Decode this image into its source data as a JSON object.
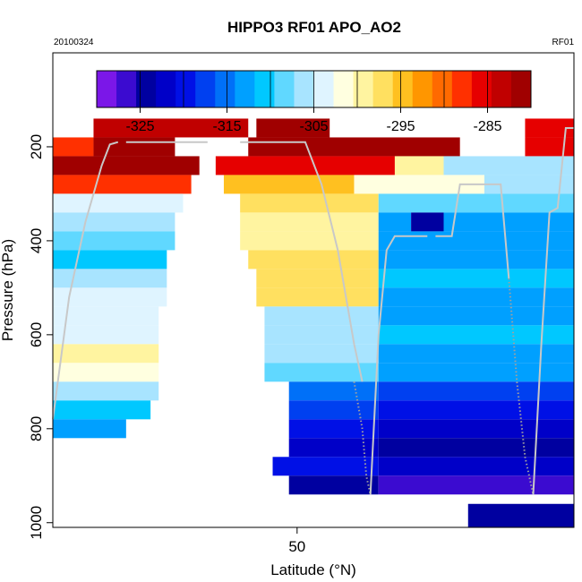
{
  "header": {
    "title": "HIPPO3 RF01 APO_AO2",
    "date": "20100324",
    "flight": "RF01"
  },
  "colors": {
    "scale": [
      "#7b17e8",
      "#3b0bd0",
      "#0000a0",
      "#0000c8",
      "#0010e6",
      "#0040f0",
      "#0070f8",
      "#00a0ff",
      "#00c8ff",
      "#60d8ff",
      "#a8e4ff",
      "#dff4ff",
      "#ffffe0",
      "#fff4a0",
      "#ffe060",
      "#ffc020",
      "#ff9600",
      "#ff6a00",
      "#ff3000",
      "#e60000",
      "#c00000",
      "#a00000"
    ],
    "track": "#c8c8c8",
    "track_dots": "#a0a0a0"
  },
  "chart_data": {
    "type": "heatmap",
    "title": "HIPPO3 RF01 APO_AO2",
    "xlabel": "Latitude (°N)",
    "ylabel": "Pressure (hPa)",
    "xlim": [
      20,
      84
    ],
    "ylim": [
      1010,
      0
    ],
    "x_ticks": [
      50
    ],
    "y_ticks": [
      200,
      400,
      600,
      800,
      1000
    ],
    "colorbar": {
      "range": [
        -330,
        -280
      ],
      "ticks": [
        -325,
        -315,
        -305,
        -295,
        -285
      ],
      "tick_labels": [
        "-325",
        "-315",
        "-305",
        "-295",
        "-285"
      ]
    },
    "rows": [
      {
        "p1": 140,
        "p2": 180,
        "segments": [
          {
            "x1": 25,
            "x2": 44,
            "v": -283
          },
          {
            "x1": 45,
            "x2": 54,
            "v": -281
          },
          {
            "x1": 78,
            "x2": 84,
            "v": -285
          }
        ]
      },
      {
        "p1": 180,
        "p2": 220,
        "segments": [
          {
            "x1": 20,
            "x2": 25,
            "v": -287
          },
          {
            "x1": 25,
            "x2": 35,
            "v": -282
          },
          {
            "x1": 44,
            "x2": 70,
            "v": -282
          },
          {
            "x1": 78,
            "x2": 84,
            "v": -286
          }
        ]
      },
      {
        "p1": 220,
        "p2": 260,
        "segments": [
          {
            "x1": 20,
            "x2": 38,
            "v": -280
          },
          {
            "x1": 40,
            "x2": 62,
            "v": -286
          },
          {
            "x1": 62,
            "x2": 68,
            "v": -300
          },
          {
            "x1": 68,
            "x2": 84,
            "v": -307
          }
        ]
      },
      {
        "p1": 260,
        "p2": 300,
        "segments": [
          {
            "x1": 20,
            "x2": 37,
            "v": -288
          },
          {
            "x1": 41,
            "x2": 57,
            "v": -295
          },
          {
            "x1": 57,
            "x2": 73,
            "v": -302
          },
          {
            "x1": 73,
            "x2": 84,
            "v": -307
          }
        ]
      },
      {
        "p1": 300,
        "p2": 340,
        "segments": [
          {
            "x1": 20,
            "x2": 36,
            "v": -303
          },
          {
            "x1": 43,
            "x2": 60,
            "v": -298
          },
          {
            "x1": 60,
            "x2": 84,
            "v": -309
          }
        ]
      },
      {
        "p1": 340,
        "p2": 380,
        "segments": [
          {
            "x1": 20,
            "x2": 35,
            "v": -307
          },
          {
            "x1": 43,
            "x2": 60,
            "v": -300
          },
          {
            "x1": 60,
            "x2": 64,
            "v": -312
          },
          {
            "x1": 64,
            "x2": 68,
            "v": -325
          },
          {
            "x1": 68,
            "x2": 84,
            "v": -314
          }
        ]
      },
      {
        "p1": 380,
        "p2": 420,
        "segments": [
          {
            "x1": 20,
            "x2": 35,
            "v": -309
          },
          {
            "x1": 43,
            "x2": 60,
            "v": -299
          },
          {
            "x1": 60,
            "x2": 84,
            "v": -313
          }
        ]
      },
      {
        "p1": 420,
        "p2": 460,
        "segments": [
          {
            "x1": 20,
            "x2": 34,
            "v": -310
          },
          {
            "x1": 44,
            "x2": 60,
            "v": -297
          },
          {
            "x1": 60,
            "x2": 84,
            "v": -312
          }
        ]
      },
      {
        "p1": 460,
        "p2": 500,
        "segments": [
          {
            "x1": 20,
            "x2": 34,
            "v": -306
          },
          {
            "x1": 45,
            "x2": 60,
            "v": -296
          },
          {
            "x1": 60,
            "x2": 84,
            "v": -310
          }
        ]
      },
      {
        "p1": 500,
        "p2": 540,
        "segments": [
          {
            "x1": 20,
            "x2": 34,
            "v": -304
          },
          {
            "x1": 45,
            "x2": 60,
            "v": -297
          },
          {
            "x1": 60,
            "x2": 84,
            "v": -313
          }
        ]
      },
      {
        "p1": 540,
        "p2": 580,
        "segments": [
          {
            "x1": 20,
            "x2": 33,
            "v": -303
          },
          {
            "x1": 46,
            "x2": 60,
            "v": -306
          },
          {
            "x1": 60,
            "x2": 84,
            "v": -312
          }
        ]
      },
      {
        "p1": 580,
        "p2": 620,
        "segments": [
          {
            "x1": 20,
            "x2": 33,
            "v": -305
          },
          {
            "x1": 46,
            "x2": 60,
            "v": -306
          },
          {
            "x1": 60,
            "x2": 84,
            "v": -310
          }
        ]
      },
      {
        "p1": 620,
        "p2": 660,
        "segments": [
          {
            "x1": 20,
            "x2": 33,
            "v": -300
          },
          {
            "x1": 46,
            "x2": 60,
            "v": -307
          },
          {
            "x1": 60,
            "x2": 84,
            "v": -312
          }
        ]
      },
      {
        "p1": 660,
        "p2": 700,
        "segments": [
          {
            "x1": 20,
            "x2": 33,
            "v": -302
          },
          {
            "x1": 46,
            "x2": 60,
            "v": -308
          },
          {
            "x1": 60,
            "x2": 84,
            "v": -314
          }
        ]
      },
      {
        "p1": 700,
        "p2": 740,
        "segments": [
          {
            "x1": 20,
            "x2": 33,
            "v": -306
          },
          {
            "x1": 49,
            "x2": 60,
            "v": -316
          },
          {
            "x1": 60,
            "x2": 84,
            "v": -318
          }
        ]
      },
      {
        "p1": 740,
        "p2": 780,
        "segments": [
          {
            "x1": 20,
            "x2": 32,
            "v": -311
          },
          {
            "x1": 49,
            "x2": 60,
            "v": -318
          },
          {
            "x1": 60,
            "x2": 84,
            "v": -320
          }
        ]
      },
      {
        "p1": 780,
        "p2": 820,
        "segments": [
          {
            "x1": 20,
            "x2": 29,
            "v": -313
          },
          {
            "x1": 49,
            "x2": 60,
            "v": -320
          },
          {
            "x1": 60,
            "x2": 84,
            "v": -322
          }
        ]
      },
      {
        "p1": 820,
        "p2": 860,
        "segments": [
          {
            "x1": 49,
            "x2": 60,
            "v": -322
          },
          {
            "x1": 60,
            "x2": 84,
            "v": -325
          }
        ]
      },
      {
        "p1": 860,
        "p2": 900,
        "segments": [
          {
            "x1": 47,
            "x2": 60,
            "v": -320
          },
          {
            "x1": 60,
            "x2": 84,
            "v": -323
          }
        ]
      },
      {
        "p1": 900,
        "p2": 940,
        "segments": [
          {
            "x1": 49,
            "x2": 60,
            "v": -325
          },
          {
            "x1": 60,
            "x2": 84,
            "v": -326
          }
        ]
      },
      {
        "p1": 960,
        "p2": 1010,
        "segments": [
          {
            "x1": 71,
            "x2": 84,
            "v": -324
          }
        ]
      }
    ],
    "flight_track": [
      {
        "style": "solid",
        "points": [
          [
            20,
            780
          ],
          [
            22,
            520
          ],
          [
            24,
            360
          ],
          [
            26,
            240
          ],
          [
            27,
            195
          ],
          [
            28,
            190
          ]
        ]
      },
      {
        "style": "solid",
        "points": [
          [
            29,
            190
          ],
          [
            39,
            190
          ]
        ]
      },
      {
        "style": "solid",
        "points": [
          [
            43,
            190
          ],
          [
            51,
            190
          ],
          [
            53,
            280
          ],
          [
            55,
            420
          ],
          [
            57,
            620
          ],
          [
            58,
            700
          ]
        ]
      },
      {
        "style": "dotted",
        "points": [
          [
            57,
            700
          ],
          [
            58,
            800
          ],
          [
            58.5,
            900
          ],
          [
            59,
            940
          ]
        ]
      },
      {
        "style": "solid",
        "points": [
          [
            59,
            940
          ],
          [
            60,
            600
          ],
          [
            61,
            420
          ],
          [
            62,
            390
          ],
          [
            66,
            390
          ]
        ]
      },
      {
        "style": "solid",
        "points": [
          [
            67,
            390
          ],
          [
            69,
            390
          ],
          [
            70,
            280
          ],
          [
            75,
            280
          ],
          [
            76,
            480
          ]
        ]
      },
      {
        "style": "dotted",
        "points": [
          [
            76,
            480
          ],
          [
            77,
            700
          ],
          [
            78,
            860
          ],
          [
            79,
            940
          ]
        ]
      },
      {
        "style": "solid",
        "points": [
          [
            79,
            940
          ],
          [
            80,
            620
          ],
          [
            81,
            340
          ],
          [
            82,
            330
          ],
          [
            83,
            160
          ],
          [
            84,
            160
          ]
        ]
      }
    ]
  }
}
